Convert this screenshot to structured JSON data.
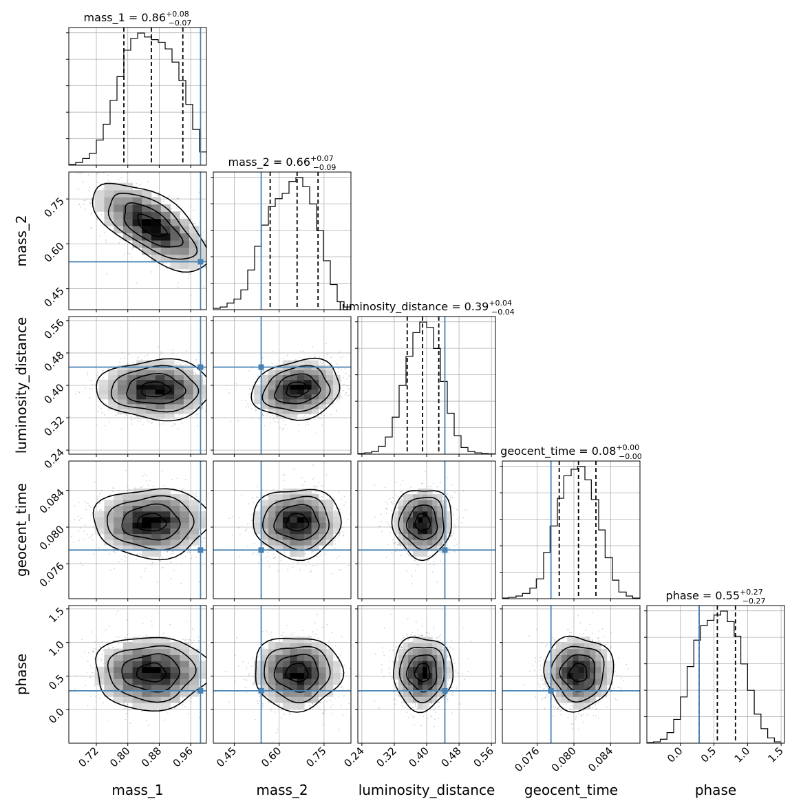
{
  "chart_data": {
    "type": "corner",
    "parameters": [
      {
        "name": "mass_1",
        "xlabel": "mass_1",
        "range": [
          0.65,
          1.0
        ],
        "ticks": [
          0.72,
          0.8,
          0.88,
          0.96
        ],
        "tick_labels": [
          "0.72",
          "0.80",
          "0.88",
          "0.96"
        ],
        "truth": 0.985,
        "quantiles": [
          0.79,
          0.86,
          0.94
        ],
        "title": {
          "main": "mass_1 = 0.86",
          "sup": "+0.08",
          "sub": "−0.07"
        },
        "hist_x": [
          0.65,
          0.6675,
          0.685,
          0.7025,
          0.72,
          0.7375,
          0.755,
          0.7725,
          0.79,
          0.8075,
          0.825,
          0.8425,
          0.86,
          0.8775,
          0.895,
          0.9125,
          0.93,
          0.9475,
          0.965,
          0.9825,
          1.0
        ],
        "hist_h": [
          0.005,
          0.02,
          0.05,
          0.09,
          0.19,
          0.31,
          0.49,
          0.67,
          0.87,
          0.96,
          1.0,
          0.97,
          0.95,
          0.93,
          0.88,
          0.78,
          0.64,
          0.46,
          0.27,
          0.1
        ]
      },
      {
        "name": "mass_2",
        "xlabel": "mass_2",
        "ylabel": "mass_2",
        "range": [
          0.38,
          0.84
        ],
        "ticks": [
          0.45,
          0.6,
          0.75
        ],
        "tick_labels": [
          "0.45",
          "0.60",
          "0.75"
        ],
        "truth": 0.54,
        "quantiles": [
          0.57,
          0.66,
          0.73
        ],
        "title": {
          "main": "mass_2 = 0.66",
          "sup": "+0.07",
          "sub": "−0.09"
        },
        "hist_x": [
          0.38,
          0.403,
          0.426,
          0.449,
          0.472,
          0.495,
          0.518,
          0.541,
          0.564,
          0.587,
          0.61,
          0.633,
          0.656,
          0.679,
          0.702,
          0.725,
          0.748,
          0.771,
          0.794,
          0.817,
          0.84
        ],
        "hist_h": [
          0.01,
          0.02,
          0.05,
          0.08,
          0.15,
          0.3,
          0.48,
          0.64,
          0.78,
          0.84,
          0.88,
          0.97,
          1.0,
          0.93,
          0.8,
          0.6,
          0.37,
          0.19,
          0.06,
          0.02
        ]
      },
      {
        "name": "luminosity_distance",
        "xlabel": "luminosity_distance",
        "ylabel": "luminosity_distance",
        "range": [
          0.23,
          0.57
        ],
        "ticks": [
          0.24,
          0.32,
          0.4,
          0.48,
          0.56
        ],
        "tick_labels": [
          "0.24",
          "0.32",
          "0.40",
          "0.48",
          "0.56"
        ],
        "truth": 0.445,
        "quantiles": [
          0.352,
          0.39,
          0.43
        ],
        "title": {
          "main": "luminosity_distance = 0.39",
          "sup": "+0.04",
          "sub": "−0.04"
        },
        "hist_x": [
          0.23,
          0.247,
          0.264,
          0.281,
          0.298,
          0.315,
          0.332,
          0.349,
          0.366,
          0.383,
          0.4,
          0.417,
          0.434,
          0.451,
          0.468,
          0.485,
          0.502,
          0.519,
          0.536,
          0.553,
          0.57
        ],
        "hist_h": [
          0.005,
          0.01,
          0.02,
          0.06,
          0.13,
          0.28,
          0.52,
          0.74,
          0.92,
          1.0,
          0.96,
          0.8,
          0.55,
          0.31,
          0.14,
          0.05,
          0.02,
          0.01,
          0.005,
          0.002
        ]
      },
      {
        "name": "geocent_time",
        "xlabel": "geocent_time",
        "ylabel": "geocent_time",
        "range": [
          0.0722,
          0.0872
        ],
        "ticks": [
          0.076,
          0.08,
          0.084
        ],
        "tick_labels": [
          "0.076",
          "0.080",
          "0.084"
        ],
        "truth": 0.0775,
        "quantiles": [
          0.0784,
          0.0805,
          0.0824
        ],
        "title": {
          "main": "geocent_time = 0.08",
          "sup": "+0.00",
          "sub": "−0.00"
        },
        "hist_x": [
          0.0722,
          0.0729,
          0.0737,
          0.0744,
          0.0752,
          0.0759,
          0.0767,
          0.0774,
          0.0782,
          0.0789,
          0.0797,
          0.0804,
          0.0812,
          0.0819,
          0.0827,
          0.0834,
          0.0842,
          0.0849,
          0.0857,
          0.0864,
          0.0872
        ],
        "hist_h": [
          0.005,
          0.01,
          0.02,
          0.04,
          0.08,
          0.15,
          0.35,
          0.55,
          0.76,
          0.93,
          0.98,
          1.0,
          0.9,
          0.75,
          0.52,
          0.31,
          0.14,
          0.05,
          0.02,
          0.005
        ]
      },
      {
        "name": "phase",
        "xlabel": "phase",
        "ylabel": "phase",
        "range": [
          -0.5,
          1.55
        ],
        "ticks": [
          0.0,
          0.5,
          1.0,
          1.5
        ],
        "tick_labels": [
          "0.0",
          "0.5",
          "1.0",
          "1.5"
        ],
        "truth": 0.28,
        "quantiles": [
          0.28,
          0.55,
          0.82
        ],
        "title": {
          "main": "phase = 0.55",
          "sup": "+0.27",
          "sub": "−0.27"
        },
        "hist_x": [
          -0.5,
          -0.4,
          -0.3,
          -0.2,
          -0.1,
          0.0,
          0.1,
          0.2,
          0.3,
          0.4,
          0.5,
          0.6,
          0.7,
          0.8,
          0.9,
          1.0,
          1.1,
          1.2,
          1.3,
          1.4,
          1.5
        ],
        "hist_h": [
          0.005,
          0.01,
          0.03,
          0.08,
          0.18,
          0.35,
          0.58,
          0.78,
          0.89,
          0.93,
          0.97,
          1.0,
          0.92,
          0.81,
          0.6,
          0.4,
          0.22,
          0.11,
          0.04,
          0.01
        ]
      }
    ],
    "sample_cloud": [
      {
        "row": 1,
        "col": 0,
        "mean": [
          0.86,
          0.66
        ],
        "sd": [
          0.07,
          0.07
        ],
        "rho": -0.65
      },
      {
        "row": 2,
        "col": 0,
        "mean": [
          0.87,
          0.39
        ],
        "sd": [
          0.07,
          0.035
        ],
        "rho": 0.0
      },
      {
        "row": 2,
        "col": 1,
        "mean": [
          0.66,
          0.39
        ],
        "sd": [
          0.07,
          0.035
        ],
        "rho": 0.15
      },
      {
        "row": 3,
        "col": 0,
        "mean": [
          0.86,
          0.0805
        ],
        "sd": [
          0.07,
          0.0018
        ],
        "rho": 0.0
      },
      {
        "row": 3,
        "col": 1,
        "mean": [
          0.66,
          0.0805
        ],
        "sd": [
          0.07,
          0.0018
        ],
        "rho": 0.0
      },
      {
        "row": 3,
        "col": 2,
        "mean": [
          0.39,
          0.0805
        ],
        "sd": [
          0.035,
          0.0018
        ],
        "rho": 0.0
      },
      {
        "row": 4,
        "col": 0,
        "mean": [
          0.86,
          0.55
        ],
        "sd": [
          0.07,
          0.26
        ],
        "rho": 0.0
      },
      {
        "row": 4,
        "col": 1,
        "mean": [
          0.66,
          0.55
        ],
        "sd": [
          0.07,
          0.26
        ],
        "rho": 0.0
      },
      {
        "row": 4,
        "col": 2,
        "mean": [
          0.39,
          0.55
        ],
        "sd": [
          0.035,
          0.26
        ],
        "rho": 0.0
      },
      {
        "row": 4,
        "col": 3,
        "mean": [
          0.0805,
          0.55
        ],
        "sd": [
          0.0018,
          0.26
        ],
        "rho": 0.0
      }
    ],
    "contour_levels_sigma": [
      0.5,
      1.0,
      1.5,
      2.0
    ],
    "truth_color": "#4682b4",
    "grid": true
  }
}
